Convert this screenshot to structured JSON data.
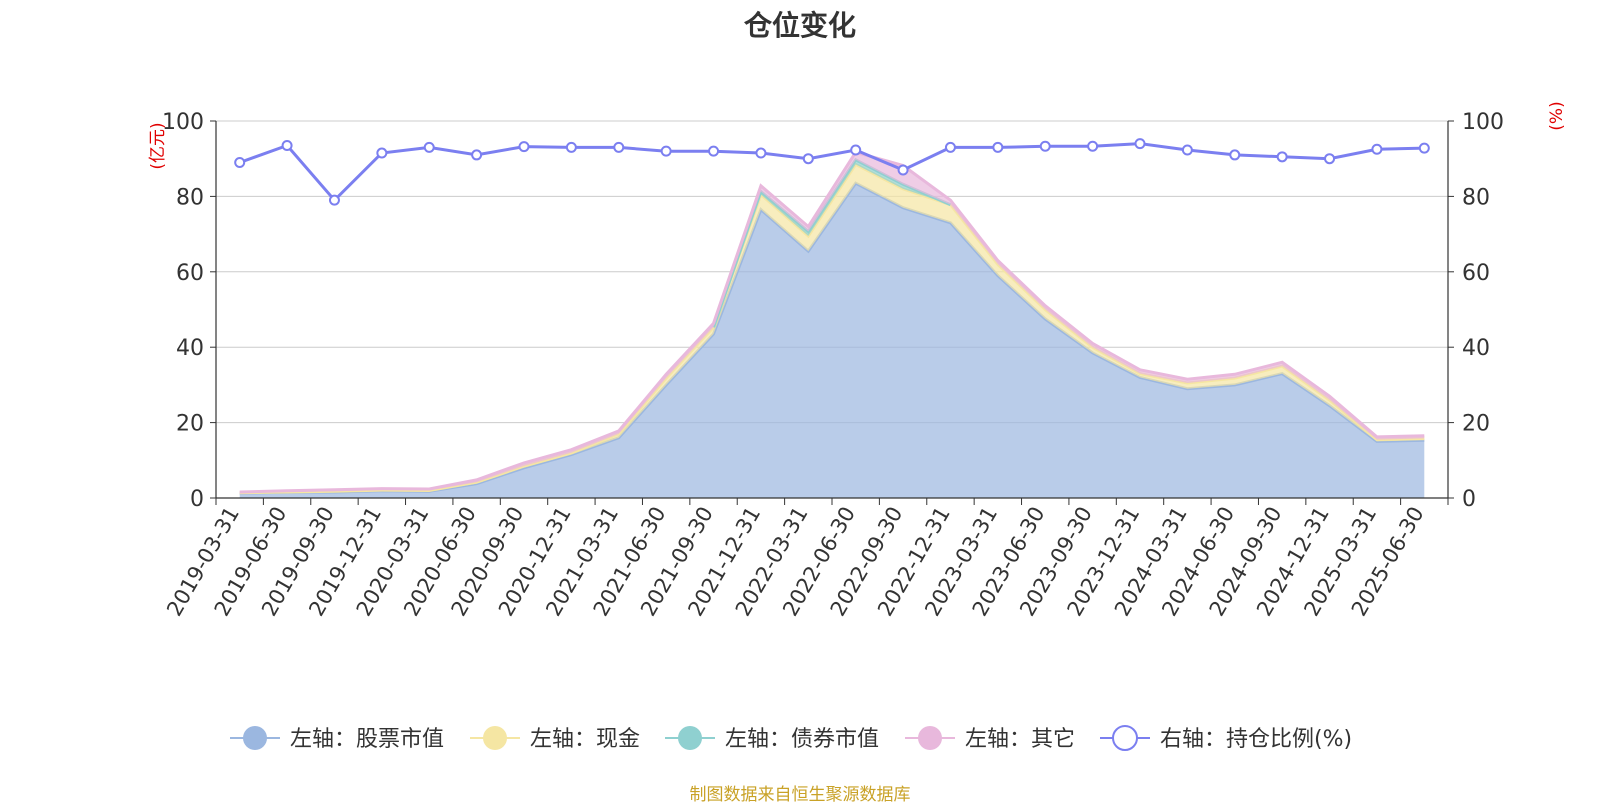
{
  "chart_data": {
    "type": "area",
    "title": "仓位变化",
    "y_left_unit": "(亿元)",
    "y_right_unit": "(%)",
    "ylim_left": [
      0,
      100
    ],
    "ylim_right": [
      0,
      100
    ],
    "y_ticks": [
      "0",
      "20",
      "40",
      "60",
      "80",
      "100"
    ],
    "grid": true,
    "stacked": true,
    "legend_position": "bottom",
    "categories": [
      "2019-03-31",
      "2019-06-30",
      "2019-09-30",
      "2019-12-31",
      "2020-03-31",
      "2020-06-30",
      "2020-09-30",
      "2020-12-31",
      "2021-03-31",
      "2021-06-30",
      "2021-09-30",
      "2021-12-31",
      "2022-03-31",
      "2022-06-30",
      "2022-09-30",
      "2022-12-31",
      "2023-03-31",
      "2023-06-30",
      "2023-09-30",
      "2023-12-31",
      "2024-03-31",
      "2024-06-30",
      "2024-09-30",
      "2024-12-31",
      "2025-03-31",
      "2025-06-30"
    ],
    "series": [
      {
        "name": "左轴：股票市值",
        "axis": "left",
        "kind": "area",
        "color": "#9bb7e0",
        "values": [
          1.3,
          1.5,
          1.6,
          1.9,
          1.8,
          3.8,
          8.0,
          11.5,
          16.0,
          30.0,
          43.5,
          76.5,
          65.5,
          83.5,
          77.0,
          73.0,
          59.0,
          47.5,
          38.5,
          32.0,
          29.0,
          30.0,
          33.0,
          24.5,
          15.0,
          15.3
        ]
      },
      {
        "name": "左轴：现金",
        "axis": "left",
        "kind": "area",
        "color": "#f5e6a3",
        "values": [
          0.1,
          0.1,
          0.2,
          0.2,
          0.2,
          0.4,
          0.5,
          0.5,
          1.0,
          1.8,
          1.8,
          4.0,
          4.0,
          5.0,
          5.0,
          4.8,
          3.0,
          2.5,
          1.5,
          1.0,
          1.5,
          1.8,
          2.0,
          1.5,
          0.5,
          0.5
        ]
      },
      {
        "name": "左轴：债券市值",
        "axis": "left",
        "kind": "area",
        "color": "#8fd0d0",
        "values": [
          0,
          0,
          0,
          0,
          0,
          0,
          0,
          0,
          0,
          0,
          0,
          0.8,
          1.2,
          1.2,
          1.2,
          0,
          0,
          0,
          0,
          0,
          0,
          0,
          0,
          0,
          0,
          0
        ]
      },
      {
        "name": "左轴：其它",
        "axis": "left",
        "kind": "area",
        "color": "#e8b8dc",
        "values": [
          0.2,
          0.3,
          0.4,
          0.4,
          0.4,
          0.6,
          0.8,
          0.8,
          0.8,
          1.0,
          1.0,
          1.5,
          1.3,
          2.0,
          5.0,
          1.2,
          1.0,
          1.0,
          1.0,
          1.0,
          1.0,
          1.0,
          1.0,
          1.0,
          0.7,
          0.7
        ]
      },
      {
        "name": "右轴：持仓比例(%)",
        "axis": "right",
        "kind": "line",
        "color": "#7b7ff0",
        "values": [
          89,
          93.5,
          79,
          91.5,
          93,
          91,
          93.2,
          93,
          93,
          92,
          92,
          91.5,
          90,
          92.3,
          87,
          93,
          93,
          93.3,
          93.3,
          94,
          92.3,
          91,
          90.5,
          90,
          92.5,
          92.8
        ]
      }
    ]
  },
  "source_note": "制图数据来自恒生聚源数据库"
}
